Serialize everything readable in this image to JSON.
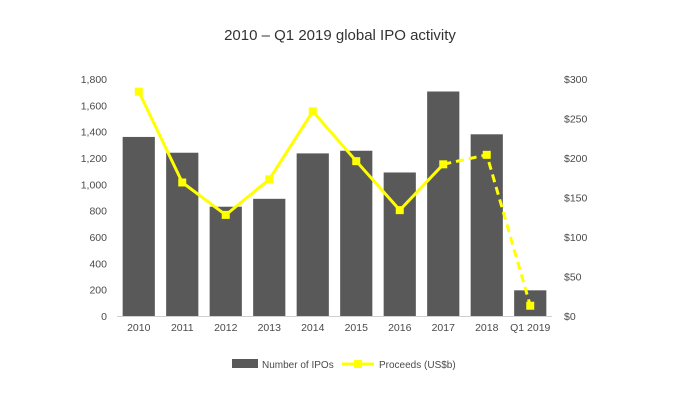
{
  "chart_data": {
    "type": "bar",
    "title": "2010 – Q1 2019 global IPO activity",
    "categories": [
      "2010",
      "2011",
      "2012",
      "2013",
      "2014",
      "2015",
      "2016",
      "2017",
      "2018",
      "Q1 2019"
    ],
    "series": [
      {
        "name": "Number of IPOs",
        "type": "bar",
        "axis": "left",
        "color": "#595959",
        "values": [
          1360,
          1240,
          830,
          890,
          1235,
          1255,
          1090,
          1705,
          1380,
          195
        ]
      },
      {
        "name": "Proceeds (US$b)",
        "type": "line",
        "axis": "right",
        "color": "#ffff00",
        "marker": "square",
        "dashed_last_segments": 2,
        "values": [
          284,
          169,
          128,
          173,
          259,
          196,
          134,
          192,
          204,
          13
        ]
      }
    ],
    "y_left": {
      "ylim": [
        0,
        1800
      ],
      "ticks": [
        "0",
        "200",
        "400",
        "600",
        "800",
        "1,000",
        "1,200",
        "1,400",
        "1,600",
        "1,800"
      ]
    },
    "y_right": {
      "ylim": [
        0,
        300
      ],
      "ticks": [
        "$0",
        "$50",
        "$100",
        "$150",
        "$200",
        "$250",
        "$300"
      ]
    },
    "grid": false,
    "legend_position": "bottom"
  }
}
